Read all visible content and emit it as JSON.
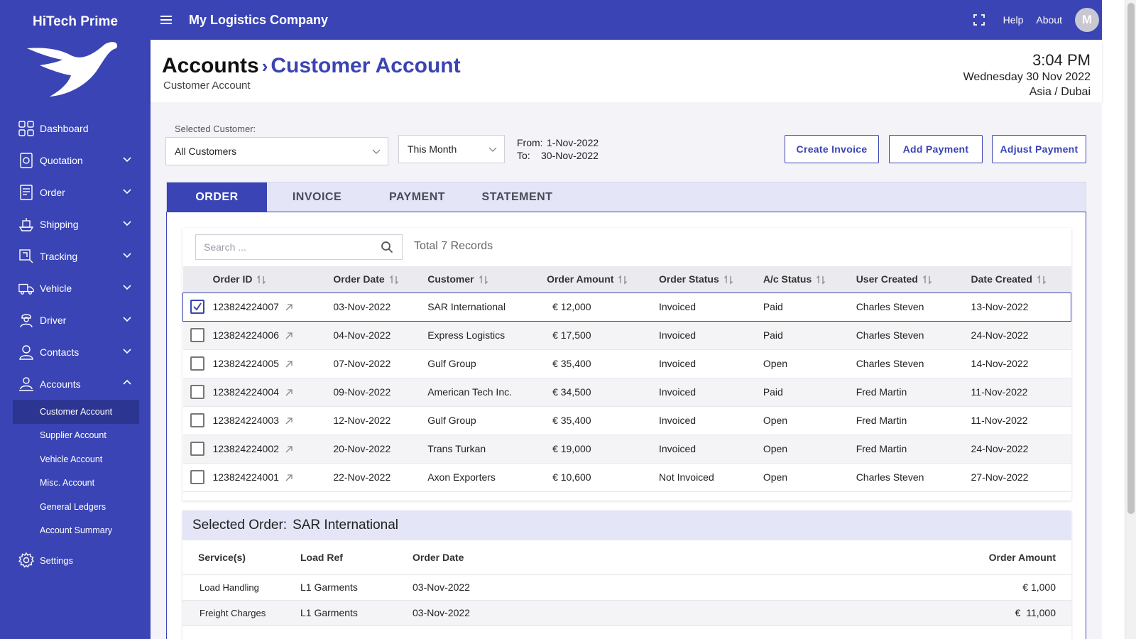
{
  "app": {
    "brand": "HiTech Prime",
    "company": "My Logistics Company"
  },
  "topbar": {
    "help": "Help",
    "about": "About",
    "avatar_initial": "M"
  },
  "sidebar": {
    "items": [
      {
        "label": "Dashboard",
        "icon": "dashboard-icon"
      },
      {
        "label": "Quotation",
        "icon": "quotation-icon"
      },
      {
        "label": "Order",
        "icon": "order-icon"
      },
      {
        "label": "Shipping",
        "icon": "shipping-icon"
      },
      {
        "label": "Tracking",
        "icon": "tracking-icon"
      },
      {
        "label": "Vehicle",
        "icon": "vehicle-icon"
      },
      {
        "label": "Driver",
        "icon": "driver-icon"
      },
      {
        "label": "Contacts",
        "icon": "contacts-icon"
      },
      {
        "label": "Accounts",
        "icon": "accounts-icon"
      }
    ],
    "sub_items": [
      "Customer Account",
      "Supplier Account",
      "Vehicle Account",
      "Misc. Account",
      "General Ledgers",
      "Account Summary"
    ],
    "settings": "Settings"
  },
  "header": {
    "crumb_root": "Accounts",
    "crumb_sep": "›",
    "crumb_current": "Customer Account",
    "subtitle": "Customer Account",
    "time": "3:04 PM",
    "date": "Wednesday 30 Nov 2022",
    "timezone": "Asia / Dubai"
  },
  "filters": {
    "customer_label": "Selected Customer:",
    "customer_value": "All Customers",
    "period_value": "This Month",
    "from_label": "From:",
    "from_value": "1-Nov-2022",
    "to_label": "To:",
    "to_value": "30-Nov-2022"
  },
  "actions": {
    "create_invoice": "Create Invoice",
    "add_payment": "Add Payment",
    "adjust_payment": "Adjust Payment"
  },
  "tabs": [
    "ORDER",
    "INVOICE",
    "PAYMENT",
    "STATEMENT"
  ],
  "search": {
    "placeholder": "Search ...",
    "records": "Total 7 Records"
  },
  "table": {
    "headers": [
      "Order ID",
      "Order Date",
      "Customer",
      "Order Amount",
      "Order Status",
      "A/c Status",
      "User Created",
      "Date Created"
    ],
    "rows": [
      {
        "id": "123824224007",
        "date": "03-Nov-2022",
        "customer": "SAR International",
        "amount": "€ 12,000",
        "status": "Invoiced",
        "ac": "Paid",
        "user": "Charles Steven",
        "created": "13-Nov-2022",
        "checked": true
      },
      {
        "id": "123824224006",
        "date": "04-Nov-2022",
        "customer": "Express Logistics",
        "amount": "€ 17,500",
        "status": "Invoiced",
        "ac": "Paid",
        "user": "Charles Steven",
        "created": "24-Nov-2022",
        "checked": false
      },
      {
        "id": "123824224005",
        "date": "07-Nov-2022",
        "customer": "Gulf Group",
        "amount": "€ 35,400",
        "status": "Invoiced",
        "ac": "Open",
        "user": "Charles Steven",
        "created": "14-Nov-2022",
        "checked": false
      },
      {
        "id": "123824224004",
        "date": "09-Nov-2022",
        "customer": "American Tech Inc.",
        "amount": "€ 34,500",
        "status": "Invoiced",
        "ac": "Paid",
        "user": "Fred Martin",
        "created": "11-Nov-2022",
        "checked": false
      },
      {
        "id": "123824224003",
        "date": "12-Nov-2022",
        "customer": "Gulf Group",
        "amount": "€ 35,400",
        "status": "Invoiced",
        "ac": "Open",
        "user": "Fred Martin",
        "created": "11-Nov-2022",
        "checked": false
      },
      {
        "id": "123824224002",
        "date": "20-Nov-2022",
        "customer": "Trans Turkan",
        "amount": "€ 19,000",
        "status": "Invoiced",
        "ac": "Open",
        "user": "Fred Martin",
        "created": "24-Nov-2022",
        "checked": false
      },
      {
        "id": "123824224001",
        "date": "22-Nov-2022",
        "customer": "Axon Exporters",
        "amount": "€ 10,600",
        "status": "Not Invoiced",
        "ac": "Open",
        "user": "Charles Steven",
        "created": "27-Nov-2022",
        "checked": false
      }
    ]
  },
  "selected_order": {
    "label": "Selected Order:",
    "customer": "SAR International",
    "headers": [
      "Service(s)",
      "Load Ref",
      "Order Date",
      "Order Amount"
    ],
    "rows": [
      {
        "service": "Load Handling",
        "ref": "L1 Garments",
        "date": "03-Nov-2022",
        "amount": "€ 1,000"
      },
      {
        "service": "Freight Charges",
        "ref": "L1 Garments",
        "date": "03-Nov-2022",
        "amount": "€  11,000"
      }
    ]
  },
  "colors": {
    "primary": "#3a44b4",
    "sidebar_active": "#2c3592",
    "tab_bg": "#e4e5f6"
  }
}
